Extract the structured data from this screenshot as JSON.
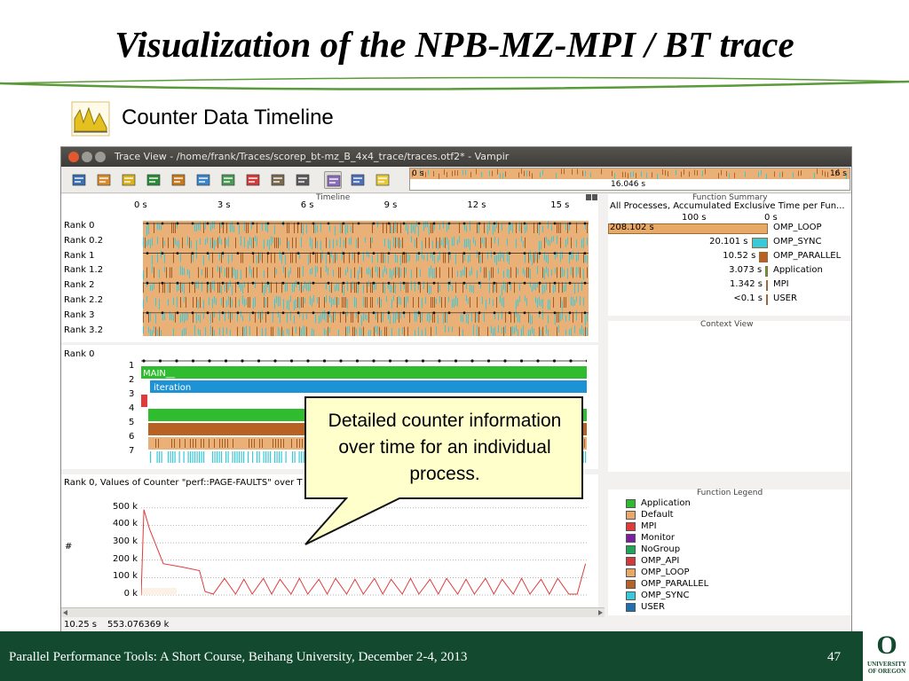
{
  "slide": {
    "title": "Visualization of the NPB-MZ-MPI / BT trace",
    "subtitle": "Counter Data Timeline",
    "callout": "Detailed counter information over time for an individual process.",
    "footer": "Parallel Performance Tools: A Short Course, Beihang University, December 2-4, 2013",
    "page_number": "47",
    "logo_mark": "O",
    "logo_text": "UNIVERSITY OF OREGON"
  },
  "window": {
    "title": "Trace View - /home/frank/Traces/scorep_bt-mz_B_4x4_trace/traces.otf2* - Vampir"
  },
  "toolbar": {
    "icons": [
      "master-timeline-icon",
      "process-timeline-icon",
      "counter-timeline-icon",
      "performance-radar-icon",
      "function-summary-icon",
      "message-summary-icon",
      "communication-matrix-icon",
      "io-summary-icon",
      "call-tree-icon",
      "function-legend-icon",
      "filter-icon",
      "pin-icon",
      "info-icon"
    ]
  },
  "overview": {
    "start": "0 s",
    "end": "16 s",
    "current": "16.046 s"
  },
  "timeline": {
    "header": "Timeline",
    "ticks": [
      "0 s",
      "3 s",
      "6 s",
      "9 s",
      "12 s",
      "15 s"
    ],
    "ranks": [
      "Rank 0",
      "Rank 0.2",
      "Rank 1",
      "Rank 1.2",
      "Rank 2",
      "Rank 2.2",
      "Rank 3",
      "Rank 3.2"
    ]
  },
  "process_timeline": {
    "rank": "Rank 0",
    "levels": [
      "1",
      "2",
      "3",
      "4",
      "5",
      "6",
      "7"
    ],
    "main_label": "MAIN__",
    "iteration_label": "iteration"
  },
  "counter": {
    "header": "Rank 0, Values of Counter \"perf::PAGE-FAULTS\" over T",
    "y_unit": "#",
    "y_ticks": [
      "500 k",
      "400 k",
      "300 k",
      "200 k",
      "100 k",
      "0 k"
    ]
  },
  "chart_data": {
    "type": "line",
    "title": "Rank 0, Values of Counter \"perf::PAGE-FAULTS\" over T",
    "ylabel": "#",
    "ylim": [
      0,
      550000
    ],
    "y_tick_labels": [
      "500 k",
      "400 k",
      "300 k",
      "200 k",
      "100 k",
      "0 k"
    ],
    "series": [
      {
        "x": [
          0,
          0.1,
          0.3,
          0.8,
          1.5,
          2.1,
          2.3,
          2.6,
          3.0,
          3.4,
          3.7,
          4.0,
          4.4,
          4.7,
          5.0,
          5.4,
          5.7,
          6.0,
          6.4,
          6.7,
          7.0,
          7.4,
          7.7,
          8.0,
          8.4,
          8.7,
          9.0,
          9.4,
          9.7,
          10.0,
          10.4,
          10.7,
          11.0,
          11.4,
          11.7,
          12.0,
          12.4,
          12.7,
          13.0,
          13.4,
          13.7,
          14.0,
          14.4,
          14.7,
          15.0,
          15.4,
          15.7,
          16.0
        ],
        "y": [
          0,
          490000,
          380000,
          180000,
          160000,
          140000,
          20000,
          5000,
          95000,
          5000,
          90000,
          5000,
          95000,
          5000,
          90000,
          5000,
          95000,
          5000,
          90000,
          5000,
          95000,
          5000,
          90000,
          5000,
          95000,
          5000,
          90000,
          5000,
          95000,
          5000,
          90000,
          5000,
          95000,
          5000,
          90000,
          5000,
          95000,
          5000,
          90000,
          5000,
          95000,
          5000,
          90000,
          5000,
          95000,
          5000,
          5000,
          180000
        ]
      }
    ]
  },
  "status": {
    "time": "10.25 s",
    "value": "553.076369 k"
  },
  "function_summary": {
    "header": "Function Summary",
    "subtitle": "All Processes, Accumulated Exclusive Time per Fun...",
    "axis": [
      "100 s",
      "0 s"
    ],
    "rows": [
      {
        "value": "208.102 s",
        "name": "OMP_LOOP",
        "seconds": 208.102,
        "color": "#e8a866"
      },
      {
        "value": "20.101 s",
        "name": "OMP_SYNC",
        "seconds": 20.101,
        "color": "#39c9d8"
      },
      {
        "value": "10.52 s",
        "name": "OMP_PARALLEL",
        "seconds": 10.52,
        "color": "#b86125"
      },
      {
        "value": "3.073 s",
        "name": "Application",
        "seconds": 3.073,
        "color": "#2fba2f"
      },
      {
        "value": "1.342 s",
        "name": "MPI",
        "seconds": 1.342,
        "color": "#e03a3a"
      },
      {
        "value": "<0.1 s",
        "name": "USER",
        "seconds": 0.05,
        "color": "#1f6fb5"
      }
    ]
  },
  "context_view": {
    "header": "Context View"
  },
  "function_legend": {
    "header": "Function Legend",
    "items": [
      {
        "name": "Application",
        "color": "#2fba2f"
      },
      {
        "name": "Default",
        "color": "#e8a866"
      },
      {
        "name": "MPI",
        "color": "#e03a3a"
      },
      {
        "name": "Monitor",
        "color": "#7b1fa2"
      },
      {
        "name": "NoGroup",
        "color": "#1fa55a"
      },
      {
        "name": "OMP_API",
        "color": "#d2393b"
      },
      {
        "name": "OMP_LOOP",
        "color": "#e8a866"
      },
      {
        "name": "OMP_PARALLEL",
        "color": "#b86125"
      },
      {
        "name": "OMP_SYNC",
        "color": "#39c9d8"
      },
      {
        "name": "USER",
        "color": "#1f6fb5"
      }
    ]
  }
}
